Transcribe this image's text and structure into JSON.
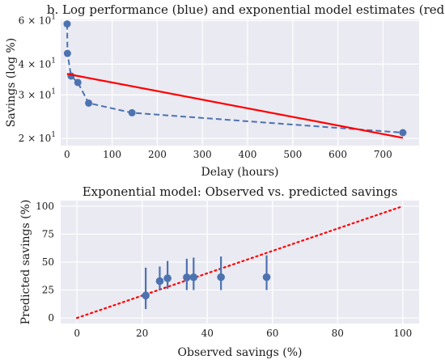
{
  "chart_data": [
    {
      "type": "line",
      "title": "b. Log performance (blue) and exponential model estimates (red)",
      "xlabel": "Delay (hours)",
      "ylabel": "Savings (log %)",
      "yscale": "log",
      "xlim": [
        -14,
        780
      ],
      "ylim": [
        18.7,
        60.7
      ],
      "grid": true,
      "xticks": [
        {
          "value": 0,
          "label": "0"
        },
        {
          "value": 100,
          "label": "100"
        },
        {
          "value": 200,
          "label": "200"
        },
        {
          "value": 300,
          "label": "300"
        },
        {
          "value": 400,
          "label": "400"
        },
        {
          "value": 500,
          "label": "500"
        },
        {
          "value": 600,
          "label": "600"
        },
        {
          "value": 700,
          "label": "700"
        }
      ],
      "yticks": [
        {
          "value": 20,
          "base": "2 × 10",
          "exp": "1"
        },
        {
          "value": 30,
          "base": "3 × 10",
          "exp": "1"
        },
        {
          "value": 40,
          "base": "4 × 10",
          "exp": "1"
        },
        {
          "value": 60,
          "base": "6 × 10",
          "exp": "1"
        }
      ],
      "series": [
        {
          "style": "dashed-markers",
          "color": "#4C72B0",
          "x": [
            0.33,
            1,
            9,
            24,
            48,
            144,
            744
          ],
          "y": [
            58.2,
            44.2,
            35.8,
            33.7,
            27.8,
            25.4,
            21.1
          ]
        },
        {
          "style": "solid",
          "color": "#FF0000",
          "x": [
            0,
            744
          ],
          "y": [
            36.5,
            20.1
          ]
        }
      ]
    },
    {
      "type": "scatter",
      "title": "Exponential model: Observed vs. predicted savings",
      "xlabel": "Observed savings (%)",
      "ylabel": "Predicted savings (%)",
      "xlim": [
        -5,
        105
      ],
      "ylim": [
        -5,
        105
      ],
      "grid": true,
      "xticks": [
        {
          "value": 0,
          "label": "0"
        },
        {
          "value": 20,
          "label": "20"
        },
        {
          "value": 40,
          "label": "40"
        },
        {
          "value": 60,
          "label": "60"
        },
        {
          "value": 80,
          "label": "80"
        },
        {
          "value": 100,
          "label": "100"
        }
      ],
      "yticks": [
        {
          "value": 0,
          "label": "0"
        },
        {
          "value": 25,
          "label": "25"
        },
        {
          "value": 50,
          "label": "50"
        },
        {
          "value": 75,
          "label": "75"
        },
        {
          "value": 100,
          "label": "100"
        }
      ],
      "reference_line": {
        "style": "dotted",
        "color": "#FF0000",
        "x": [
          0,
          100
        ],
        "y": [
          0,
          100
        ]
      },
      "marker_color": "#4C72B0",
      "points": [
        {
          "x": 21.1,
          "y": 20.1,
          "low": 8,
          "high": 45
        },
        {
          "x": 25.4,
          "y": 33.0,
          "low": 25,
          "high": 46
        },
        {
          "x": 27.8,
          "y": 35.5,
          "low": 26,
          "high": 51
        },
        {
          "x": 33.7,
          "y": 36.3,
          "low": 25,
          "high": 53
        },
        {
          "x": 35.8,
          "y": 36.4,
          "low": 25,
          "high": 54
        },
        {
          "x": 44.2,
          "y": 36.5,
          "low": 25,
          "high": 55
        },
        {
          "x": 58.2,
          "y": 36.5,
          "low": 25,
          "high": 56
        }
      ]
    }
  ]
}
